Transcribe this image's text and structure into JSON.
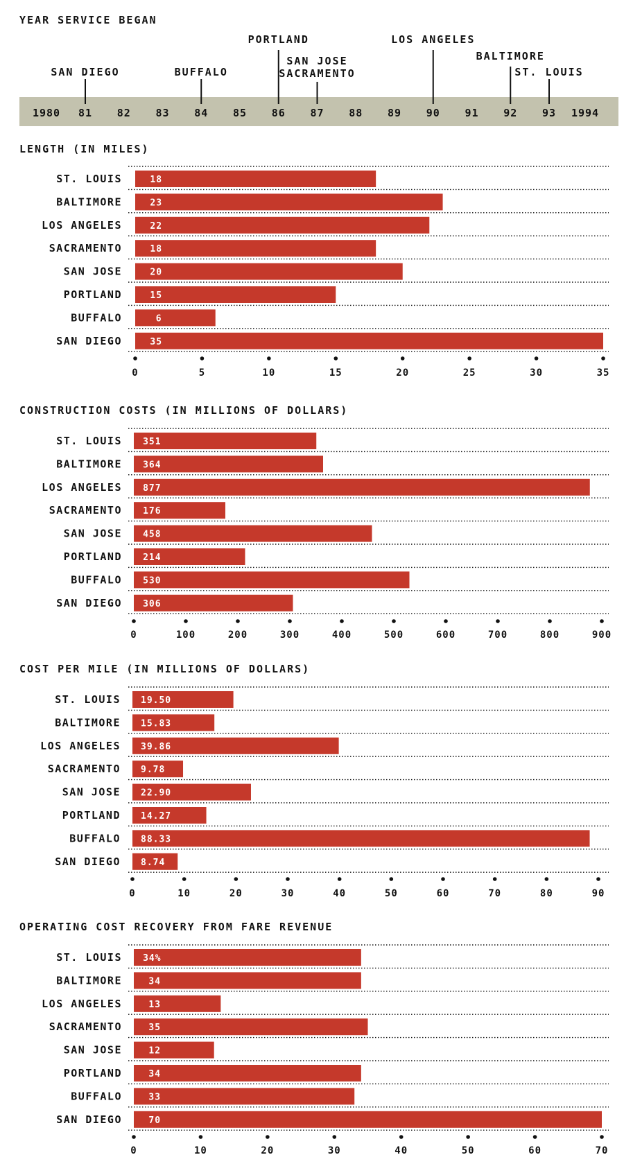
{
  "colors": {
    "bar": "#c5392b",
    "band": "#c3c2ae",
    "text": "#111111",
    "bar_text": "#ffffff"
  },
  "timeline": {
    "title": "YEAR SERVICE BEGAN",
    "years": [
      {
        "label": "1980",
        "year": 1980
      },
      {
        "label": "81",
        "year": 1981
      },
      {
        "label": "82",
        "year": 1982
      },
      {
        "label": "83",
        "year": 1983
      },
      {
        "label": "84",
        "year": 1984
      },
      {
        "label": "85",
        "year": 1985
      },
      {
        "label": "86",
        "year": 1986
      },
      {
        "label": "87",
        "year": 1987
      },
      {
        "label": "88",
        "year": 1988
      },
      {
        "label": "89",
        "year": 1989
      },
      {
        "label": "90",
        "year": 1990
      },
      {
        "label": "91",
        "year": 1991
      },
      {
        "label": "92",
        "year": 1992
      },
      {
        "label": "93",
        "year": 1993
      },
      {
        "label": "1994",
        "year": 1994
      }
    ],
    "events": [
      {
        "cities": [
          "SAN DIEGO"
        ],
        "year": 1981
      },
      {
        "cities": [
          "BUFFALO"
        ],
        "year": 1984
      },
      {
        "cities": [
          "PORTLAND"
        ],
        "year": 1986
      },
      {
        "cities": [
          "SAN JOSE",
          "SACRAMENTO"
        ],
        "year": 1987
      },
      {
        "cities": [
          "LOS ANGELES"
        ],
        "year": 1990
      },
      {
        "cities": [
          "BALTIMORE"
        ],
        "year": 1992
      },
      {
        "cities": [
          "ST. LOUIS"
        ],
        "year": 1993
      }
    ]
  },
  "chart_data": [
    {
      "type": "bar",
      "title": "LENGTH (IN MILES)",
      "categories": [
        "ST. LOUIS",
        "BALTIMORE",
        "LOS ANGELES",
        "SACRAMENTO",
        "SAN JOSE",
        "PORTLAND",
        "BUFFALO",
        "SAN DIEGO"
      ],
      "values": [
        18,
        23,
        22,
        18,
        20,
        15,
        6,
        35
      ],
      "value_labels": [
        "18",
        "23",
        "22",
        "18",
        "20",
        "15",
        "6",
        "35"
      ],
      "xticks": [
        "0",
        "5",
        "10",
        "15",
        "20",
        "25",
        "30",
        "35"
      ],
      "xlim": [
        0,
        35
      ],
      "orientation": "horizontal",
      "grid": "dotted"
    },
    {
      "type": "bar",
      "title": "CONSTRUCTION COSTS (IN MILLIONS OF DOLLARS)",
      "categories": [
        "ST. LOUIS",
        "BALTIMORE",
        "LOS ANGELES",
        "SACRAMENTO",
        "SAN JOSE",
        "PORTLAND",
        "BUFFALO",
        "SAN DIEGO"
      ],
      "values": [
        351,
        364,
        877,
        176,
        458,
        214,
        530,
        306
      ],
      "value_labels": [
        "351",
        "364",
        "877",
        "176",
        "458",
        "214",
        "530",
        "306"
      ],
      "xticks": [
        "0",
        "100",
        "200",
        "300",
        "400",
        "500",
        "600",
        "700",
        "800",
        "900"
      ],
      "xlim": [
        0,
        900
      ],
      "orientation": "horizontal",
      "grid": "dotted"
    },
    {
      "type": "bar",
      "title": "COST PER MILE (IN MILLIONS OF DOLLARS)",
      "categories": [
        "ST. LOUIS",
        "BALTIMORE",
        "LOS ANGELES",
        "SACRAMENTO",
        "SAN JOSE",
        "PORTLAND",
        "BUFFALO",
        "SAN DIEGO"
      ],
      "values": [
        19.5,
        15.83,
        39.86,
        9.78,
        22.9,
        14.27,
        88.33,
        8.74
      ],
      "value_labels": [
        "19.50",
        "15.83",
        "39.86",
        "9.78",
        "22.90",
        "14.27",
        "88.33",
        "8.74"
      ],
      "xticks": [
        "0",
        "10",
        "20",
        "30",
        "40",
        "50",
        "60",
        "70",
        "80",
        "90"
      ],
      "xlim": [
        0,
        90
      ],
      "orientation": "horizontal",
      "grid": "dotted"
    },
    {
      "type": "bar",
      "title": "OPERATING COST RECOVERY FROM FARE REVENUE",
      "categories": [
        "ST. LOUIS",
        "BALTIMORE",
        "LOS ANGELES",
        "SACRAMENTO",
        "SAN JOSE",
        "PORTLAND",
        "BUFFALO",
        "SAN DIEGO"
      ],
      "values": [
        34,
        34,
        13,
        35,
        12,
        34,
        33,
        70
      ],
      "value_labels": [
        "34%",
        "34",
        "13",
        "35",
        "12",
        "34",
        "33",
        "70"
      ],
      "xticks": [
        "0",
        "10",
        "20",
        "30",
        "40",
        "50",
        "60",
        "70"
      ],
      "xlim": [
        0,
        70
      ],
      "orientation": "horizontal",
      "grid": "dotted"
    }
  ]
}
